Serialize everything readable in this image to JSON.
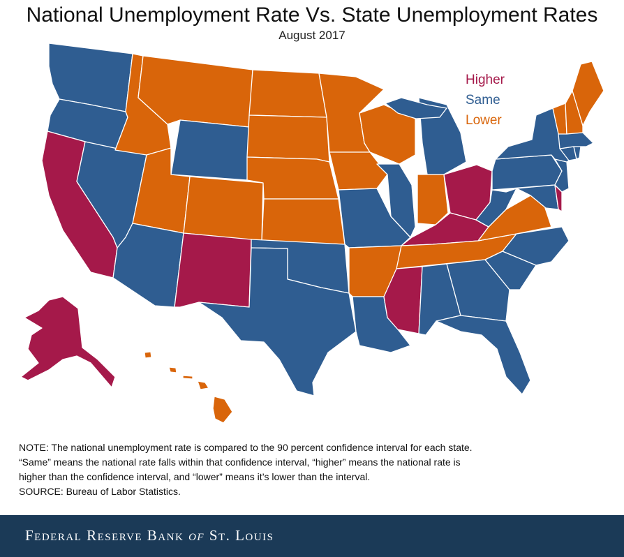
{
  "title": "National Unemployment Rate Vs. State Unemployment Rates",
  "subtitle": "August 2017",
  "colors": {
    "higher": "#a5194a",
    "same": "#2f5d91",
    "lower": "#d9650a",
    "footer_bg": "#1b3a57"
  },
  "legend": {
    "items": [
      {
        "label": "Higher",
        "key": "higher"
      },
      {
        "label": "Same",
        "key": "same"
      },
      {
        "label": "Lower",
        "key": "lower"
      }
    ]
  },
  "states": {
    "WA": "same",
    "OR": "same",
    "CA": "higher",
    "NV": "same",
    "ID": "lower",
    "MT": "lower",
    "WY": "same",
    "UT": "lower",
    "AZ": "same",
    "CO": "lower",
    "NM": "higher",
    "ND": "lower",
    "SD": "lower",
    "NE": "lower",
    "KS": "lower",
    "OK": "same",
    "TX": "same",
    "MN": "lower",
    "IA": "lower",
    "MO": "same",
    "AR": "lower",
    "LA": "same",
    "WI": "lower",
    "IL": "same",
    "MI": "same",
    "IN": "lower",
    "OH": "higher",
    "KY": "higher",
    "TN": "lower",
    "MS": "higher",
    "AL": "same",
    "GA": "same",
    "FL": "same",
    "SC": "same",
    "NC": "same",
    "VA": "lower",
    "WV": "same",
    "PA": "same",
    "NY": "same",
    "VT": "lower",
    "NH": "lower",
    "ME": "lower",
    "MA": "same",
    "CT": "same",
    "RI": "same",
    "NJ": "same",
    "DE": "higher",
    "MD": "same",
    "AK": "higher",
    "HI": "lower"
  },
  "note": {
    "line1": "NOTE: The national unemployment rate is compared to the 90 percent confidence interval for each state.",
    "line2": "“Same” means the national rate falls within that confidence interval, “higher” means the national rate is",
    "line3": "higher than the confidence interval, and “lower” means it’s lower than the interval.",
    "line4": "SOURCE: Bureau of Labor Statistics."
  },
  "footer": {
    "pre": "Federal Reserve Bank ",
    "of": "of",
    "post": " St. Louis"
  }
}
